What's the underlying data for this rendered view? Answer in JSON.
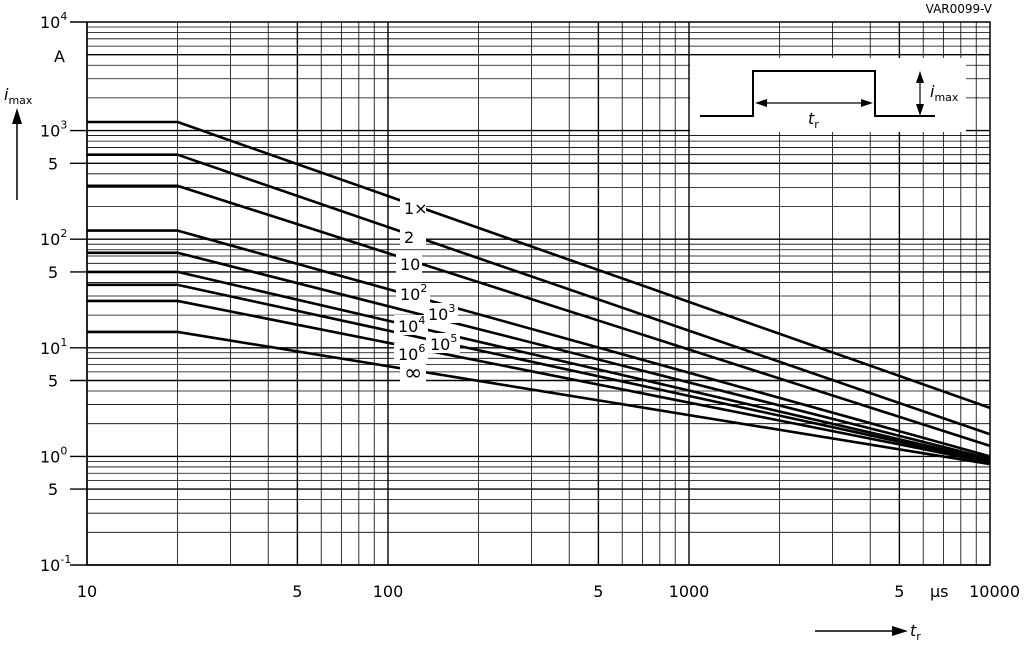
{
  "chart_data": {
    "type": "line",
    "figure_code": "VAR0099-V",
    "x_axis": {
      "label": "t",
      "label_subscript": "r",
      "unit": "µs",
      "scale": "log",
      "range": [
        10,
        10000
      ],
      "major_ticks": [
        {
          "value": 10,
          "label": "10"
        },
        {
          "value": 50,
          "label": "5"
        },
        {
          "value": 100,
          "label": "100"
        },
        {
          "value": 500,
          "label": "5"
        },
        {
          "value": 1000,
          "label": "1000"
        },
        {
          "value": 5000,
          "label": "5"
        },
        {
          "value": 10000,
          "label": "10000"
        }
      ]
    },
    "y_axis": {
      "label": "i",
      "label_subscript": "max",
      "unit": "A",
      "scale": "log",
      "range": [
        0.1,
        10000
      ],
      "major_ticks": [
        {
          "value": 10000,
          "base": "10",
          "exp": "4"
        },
        {
          "value": 1000,
          "base": "10",
          "exp": "3"
        },
        {
          "value": 500,
          "label": "5"
        },
        {
          "value": 100,
          "base": "10",
          "exp": "2"
        },
        {
          "value": 50,
          "label": "5"
        },
        {
          "value": 10,
          "base": "10",
          "exp": "1"
        },
        {
          "value": 5,
          "label": "5"
        },
        {
          "value": 1,
          "base": "10",
          "exp": "0"
        },
        {
          "value": 0.5,
          "label": "5"
        },
        {
          "value": 0.1,
          "base": "10",
          "exp": "-1"
        }
      ]
    },
    "grid": true,
    "series": [
      {
        "name": "1×",
        "label_main": "1×",
        "points": [
          [
            10,
            1200
          ],
          [
            20,
            1200
          ],
          [
            10000,
            2.8
          ]
        ]
      },
      {
        "name": "2",
        "label_main": "2",
        "points": [
          [
            10,
            600
          ],
          [
            20,
            600
          ],
          [
            10000,
            1.6
          ]
        ]
      },
      {
        "name": "10",
        "label_main": "10",
        "points": [
          [
            10,
            310
          ],
          [
            20,
            310
          ],
          [
            10000,
            1.25
          ]
        ]
      },
      {
        "name": "10^2",
        "label_main": "10",
        "label_exp": "2",
        "points": [
          [
            10,
            120
          ],
          [
            20,
            120
          ],
          [
            10000,
            1.0
          ]
        ]
      },
      {
        "name": "10^3",
        "label_main": "10",
        "label_exp": "3",
        "points": [
          [
            10,
            75
          ],
          [
            20,
            75
          ],
          [
            10000,
            0.95
          ]
        ]
      },
      {
        "name": "10^4",
        "label_main": "10",
        "label_exp": "4",
        "points": [
          [
            10,
            50
          ],
          [
            20,
            50
          ],
          [
            10000,
            0.92
          ]
        ]
      },
      {
        "name": "10^5",
        "label_main": "10",
        "label_exp": "5",
        "points": [
          [
            10,
            38
          ],
          [
            20,
            38
          ],
          [
            10000,
            0.9
          ]
        ]
      },
      {
        "name": "10^6",
        "label_main": "10",
        "label_exp": "6",
        "points": [
          [
            10,
            27
          ],
          [
            20,
            27
          ],
          [
            10000,
            0.88
          ]
        ]
      },
      {
        "name": "∞",
        "label_main": "∞",
        "points": [
          [
            10,
            14
          ],
          [
            20,
            14
          ],
          [
            10000,
            0.85
          ]
        ]
      }
    ],
    "inset": {
      "tr_label": "t",
      "tr_sub": "r",
      "imax_label": "i",
      "imax_sub": "max"
    }
  }
}
